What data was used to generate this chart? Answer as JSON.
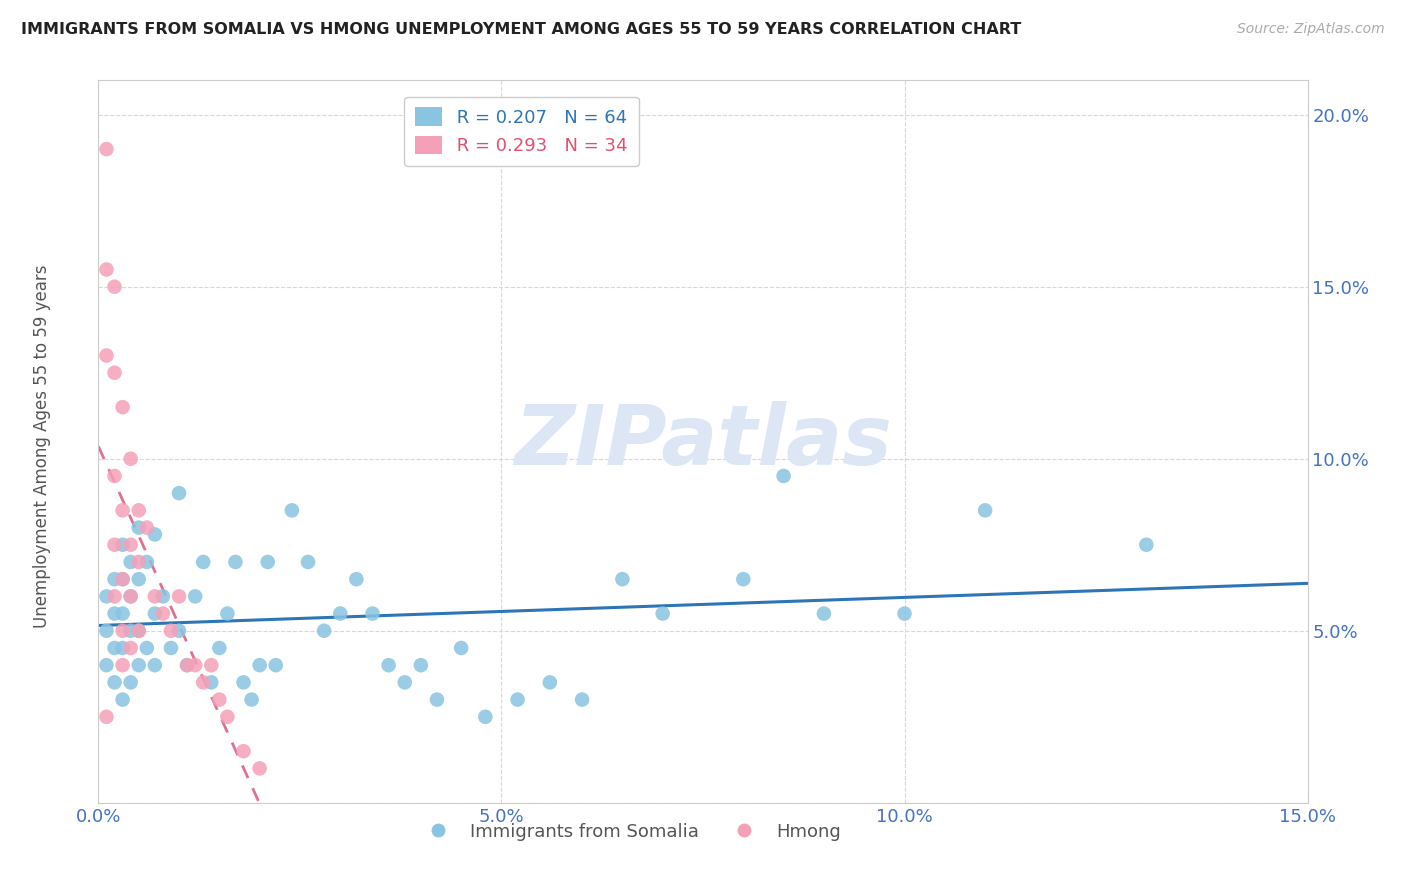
{
  "title": "IMMIGRANTS FROM SOMALIA VS HMONG UNEMPLOYMENT AMONG AGES 55 TO 59 YEARS CORRELATION CHART",
  "source": "Source: ZipAtlas.com",
  "ylabel": "Unemployment Among Ages 55 to 59 years",
  "xlim": [
    0,
    0.15
  ],
  "ylim": [
    0,
    0.21
  ],
  "somalia_color": "#89c4e1",
  "hmong_color": "#f4a0b8",
  "somalia_line_color": "#2e75b6",
  "hmong_line_color": "#e07090",
  "hmong_line_dash": [
    4,
    3
  ],
  "somalia_R": 0.207,
  "somalia_N": 64,
  "hmong_R": 0.293,
  "hmong_N": 34,
  "watermark_text": "ZIPatlas",
  "watermark_color": "#dce6f5",
  "legend_somalia": "Immigrants from Somalia",
  "legend_hmong": "Hmong",
  "somalia_x": [
    0.001,
    0.001,
    0.001,
    0.002,
    0.002,
    0.002,
    0.002,
    0.003,
    0.003,
    0.003,
    0.003,
    0.003,
    0.004,
    0.004,
    0.004,
    0.004,
    0.005,
    0.005,
    0.005,
    0.005,
    0.006,
    0.006,
    0.007,
    0.007,
    0.007,
    0.008,
    0.009,
    0.01,
    0.01,
    0.011,
    0.012,
    0.013,
    0.014,
    0.015,
    0.016,
    0.017,
    0.018,
    0.019,
    0.02,
    0.021,
    0.022,
    0.024,
    0.026,
    0.028,
    0.03,
    0.032,
    0.034,
    0.036,
    0.038,
    0.04,
    0.042,
    0.045,
    0.048,
    0.052,
    0.056,
    0.06,
    0.065,
    0.07,
    0.08,
    0.085,
    0.09,
    0.1,
    0.11,
    0.13
  ],
  "somalia_y": [
    0.04,
    0.05,
    0.06,
    0.035,
    0.045,
    0.055,
    0.065,
    0.03,
    0.045,
    0.055,
    0.065,
    0.075,
    0.035,
    0.05,
    0.06,
    0.07,
    0.04,
    0.05,
    0.065,
    0.08,
    0.045,
    0.07,
    0.04,
    0.055,
    0.078,
    0.06,
    0.045,
    0.05,
    0.09,
    0.04,
    0.06,
    0.07,
    0.035,
    0.045,
    0.055,
    0.07,
    0.035,
    0.03,
    0.04,
    0.07,
    0.04,
    0.085,
    0.07,
    0.05,
    0.055,
    0.065,
    0.055,
    0.04,
    0.035,
    0.04,
    0.03,
    0.045,
    0.025,
    0.03,
    0.035,
    0.03,
    0.065,
    0.055,
    0.065,
    0.095,
    0.055,
    0.055,
    0.085,
    0.075
  ],
  "hmong_x": [
    0.001,
    0.001,
    0.001,
    0.001,
    0.002,
    0.002,
    0.002,
    0.002,
    0.002,
    0.003,
    0.003,
    0.003,
    0.003,
    0.003,
    0.004,
    0.004,
    0.004,
    0.004,
    0.005,
    0.005,
    0.005,
    0.006,
    0.007,
    0.008,
    0.009,
    0.01,
    0.011,
    0.012,
    0.013,
    0.014,
    0.015,
    0.016,
    0.018,
    0.02
  ],
  "hmong_y": [
    0.19,
    0.155,
    0.13,
    0.025,
    0.15,
    0.125,
    0.095,
    0.075,
    0.06,
    0.115,
    0.085,
    0.065,
    0.05,
    0.04,
    0.1,
    0.075,
    0.06,
    0.045,
    0.085,
    0.07,
    0.05,
    0.08,
    0.06,
    0.055,
    0.05,
    0.06,
    0.04,
    0.04,
    0.035,
    0.04,
    0.03,
    0.025,
    0.015,
    0.01
  ]
}
